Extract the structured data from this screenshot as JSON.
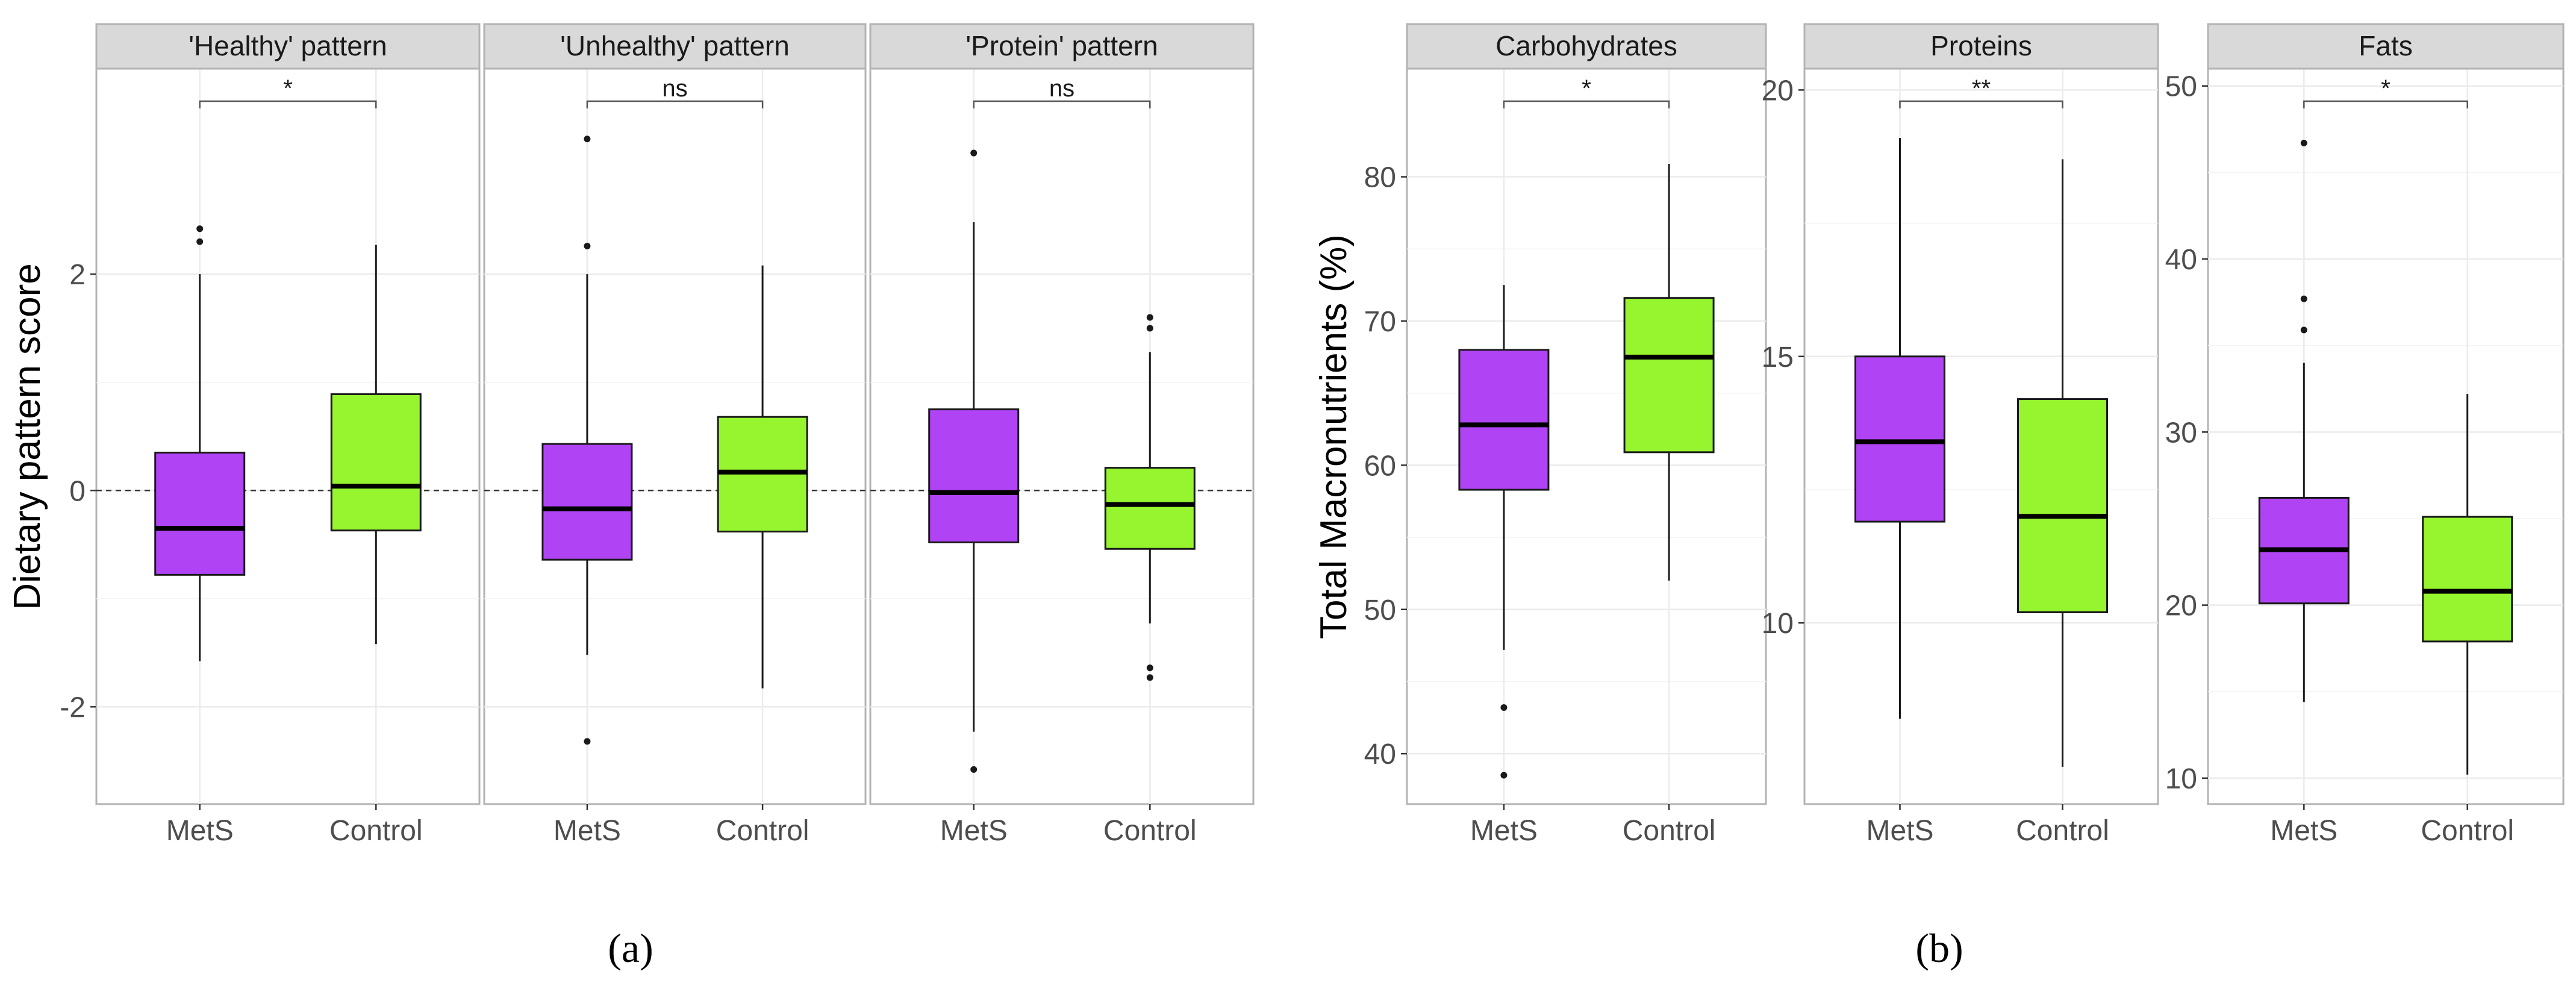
{
  "colors": {
    "MetS": "#b044f5",
    "Control": "#96f52e",
    "strip_bg": "#d9d9d9",
    "panel_border": "#b3b3b3",
    "grid": "#ebebeb"
  },
  "chart_data": [
    {
      "type": "box",
      "panel": "a",
      "ylabel": "Dietary pattern score",
      "ylim": [
        -2.9,
        3.9
      ],
      "yticks": [
        -2,
        0,
        2
      ],
      "ytick_labels": [
        "-2",
        "0",
        "2"
      ],
      "reference_line": 0,
      "categories": [
        "MetS",
        "Control"
      ],
      "facets": [
        {
          "title": "'Healthy' pattern",
          "significance": "*",
          "boxes": [
            {
              "group": "MetS",
              "q1": -0.78,
              "median": -0.35,
              "q3": 0.35,
              "whisker_low": -1.58,
              "whisker_high": 2.0,
              "outliers": [
                2.3,
                2.42
              ]
            },
            {
              "group": "Control",
              "q1": -0.37,
              "median": 0.04,
              "q3": 0.89,
              "whisker_low": -1.42,
              "whisker_high": 2.27,
              "outliers": []
            }
          ]
        },
        {
          "title": "'Unhealthy' pattern",
          "significance": "ns",
          "boxes": [
            {
              "group": "MetS",
              "q1": -0.64,
              "median": -0.17,
              "q3": 0.43,
              "whisker_low": -1.52,
              "whisker_high": 2.0,
              "outliers": [
                -2.32,
                2.26,
                3.25
              ]
            },
            {
              "group": "Control",
              "q1": -0.38,
              "median": 0.17,
              "q3": 0.68,
              "whisker_low": -1.83,
              "whisker_high": 2.08,
              "outliers": []
            }
          ]
        },
        {
          "title": "'Protein' pattern",
          "significance": "ns",
          "boxes": [
            {
              "group": "MetS",
              "q1": -0.48,
              "median": -0.02,
              "q3": 0.75,
              "whisker_low": -2.23,
              "whisker_high": 2.48,
              "outliers": [
                -2.58,
                3.12
              ]
            },
            {
              "group": "Control",
              "q1": -0.54,
              "median": -0.13,
              "q3": 0.21,
              "whisker_low": -1.23,
              "whisker_high": 1.28,
              "outliers": [
                -1.73,
                -1.64,
                1.5,
                1.6
              ]
            }
          ]
        }
      ]
    },
    {
      "type": "box",
      "panel": "b",
      "ylabel": "Total Macronutrients (%)",
      "categories": [
        "MetS",
        "Control"
      ],
      "facets": [
        {
          "title": "Carbohydrates",
          "significance": "*",
          "ylim": [
            36.5,
            87.5
          ],
          "yticks": [
            40,
            50,
            60,
            70,
            80
          ],
          "ytick_labels": [
            "40",
            "50",
            "60",
            "70",
            "80"
          ],
          "boxes": [
            {
              "group": "MetS",
              "q1": 58.3,
              "median": 62.8,
              "q3": 68.0,
              "whisker_low": 47.2,
              "whisker_high": 72.5,
              "outliers": [
                38.5,
                43.2
              ]
            },
            {
              "group": "Control",
              "q1": 60.9,
              "median": 67.5,
              "q3": 71.6,
              "whisker_low": 52.0,
              "whisker_high": 80.9,
              "outliers": []
            }
          ]
        },
        {
          "title": "Proteins",
          "significance": "**",
          "ylim": [
            6.6,
            20.4
          ],
          "yticks": [
            10,
            15,
            20
          ],
          "ytick_labels": [
            "10",
            "15",
            "20"
          ],
          "boxes": [
            {
              "group": "MetS",
              "q1": 11.9,
              "median": 13.4,
              "q3": 15.0,
              "whisker_low": 8.2,
              "whisker_high": 19.1,
              "outliers": []
            },
            {
              "group": "Control",
              "q1": 10.2,
              "median": 12.0,
              "q3": 14.2,
              "whisker_low": 7.3,
              "whisker_high": 18.7,
              "outliers": []
            }
          ]
        },
        {
          "title": "Fats",
          "significance": "*",
          "ylim": [
            8.5,
            51.0
          ],
          "yticks": [
            10,
            20,
            30,
            40,
            50
          ],
          "ytick_labels": [
            "10",
            "20",
            "30",
            "40",
            "50"
          ],
          "boxes": [
            {
              "group": "MetS",
              "q1": 20.1,
              "median": 23.2,
              "q3": 26.2,
              "whisker_low": 14.4,
              "whisker_high": 34.0,
              "outliers": [
                35.9,
                37.7,
                46.7
              ]
            },
            {
              "group": "Control",
              "q1": 17.9,
              "median": 20.8,
              "q3": 25.1,
              "whisker_low": 10.2,
              "whisker_high": 32.2,
              "outliers": []
            }
          ]
        }
      ]
    }
  ],
  "captions": [
    "(a)",
    "(b)"
  ]
}
